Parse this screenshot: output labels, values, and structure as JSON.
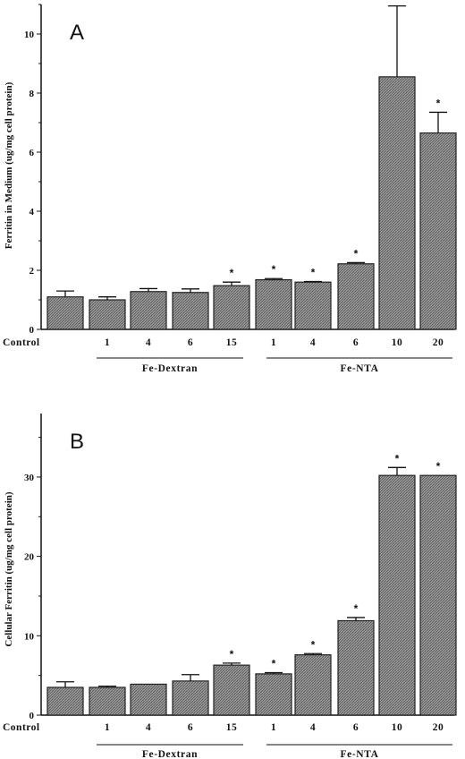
{
  "chart_data": [
    {
      "type": "bar",
      "panel_label": "A",
      "ylabel": "Ferritin  in  Medium  (ug/mg  cell  protein)",
      "ylim": [
        0,
        11
      ],
      "yticks": [
        0,
        2,
        4,
        6,
        8,
        10
      ],
      "categories": [
        "Control",
        "1",
        "4",
        "6",
        "15",
        "1",
        "4",
        "6",
        "10",
        "20"
      ],
      "values": [
        1.1,
        1.0,
        1.28,
        1.25,
        1.48,
        1.68,
        1.6,
        2.22,
        8.55,
        6.65
      ],
      "errors": [
        0.2,
        0.1,
        0.1,
        0.12,
        0.12,
        0.04,
        0.02,
        0.04,
        2.4,
        0.7
      ],
      "significant": [
        false,
        false,
        false,
        false,
        true,
        true,
        true,
        true,
        true,
        true
      ],
      "significance_marker": "*",
      "groups": [
        {
          "label": "Fe-Dextran",
          "categories": [
            "1",
            "4",
            "6",
            "15"
          ]
        },
        {
          "label": "Fe-NTA",
          "categories": [
            "1",
            "4",
            "6",
            "10",
            "20"
          ]
        }
      ]
    },
    {
      "type": "bar",
      "panel_label": "B",
      "ylabel": "Cellular  Ferritin  (ug/mg  cell  protein)",
      "ylim": [
        0,
        38
      ],
      "yticks": [
        0,
        10,
        20,
        30
      ],
      "categories": [
        "Control",
        "1",
        "4",
        "6",
        "15",
        "1",
        "4",
        "6",
        "10",
        "20"
      ],
      "values": [
        3.5,
        3.5,
        3.9,
        4.3,
        6.3,
        5.2,
        7.6,
        11.9,
        30.2,
        30.2
      ],
      "errors": [
        0.7,
        0.15,
        0.0,
        0.8,
        0.25,
        0.15,
        0.15,
        0.4,
        1.0,
        0.0
      ],
      "significant": [
        false,
        false,
        false,
        false,
        true,
        true,
        true,
        true,
        true,
        true
      ],
      "significance_marker": "*",
      "groups": [
        {
          "label": "Fe-Dextran",
          "categories": [
            "1",
            "4",
            "6",
            "15"
          ]
        },
        {
          "label": "Fe-NTA",
          "categories": [
            "1",
            "4",
            "6",
            "10",
            "20"
          ]
        }
      ]
    }
  ]
}
